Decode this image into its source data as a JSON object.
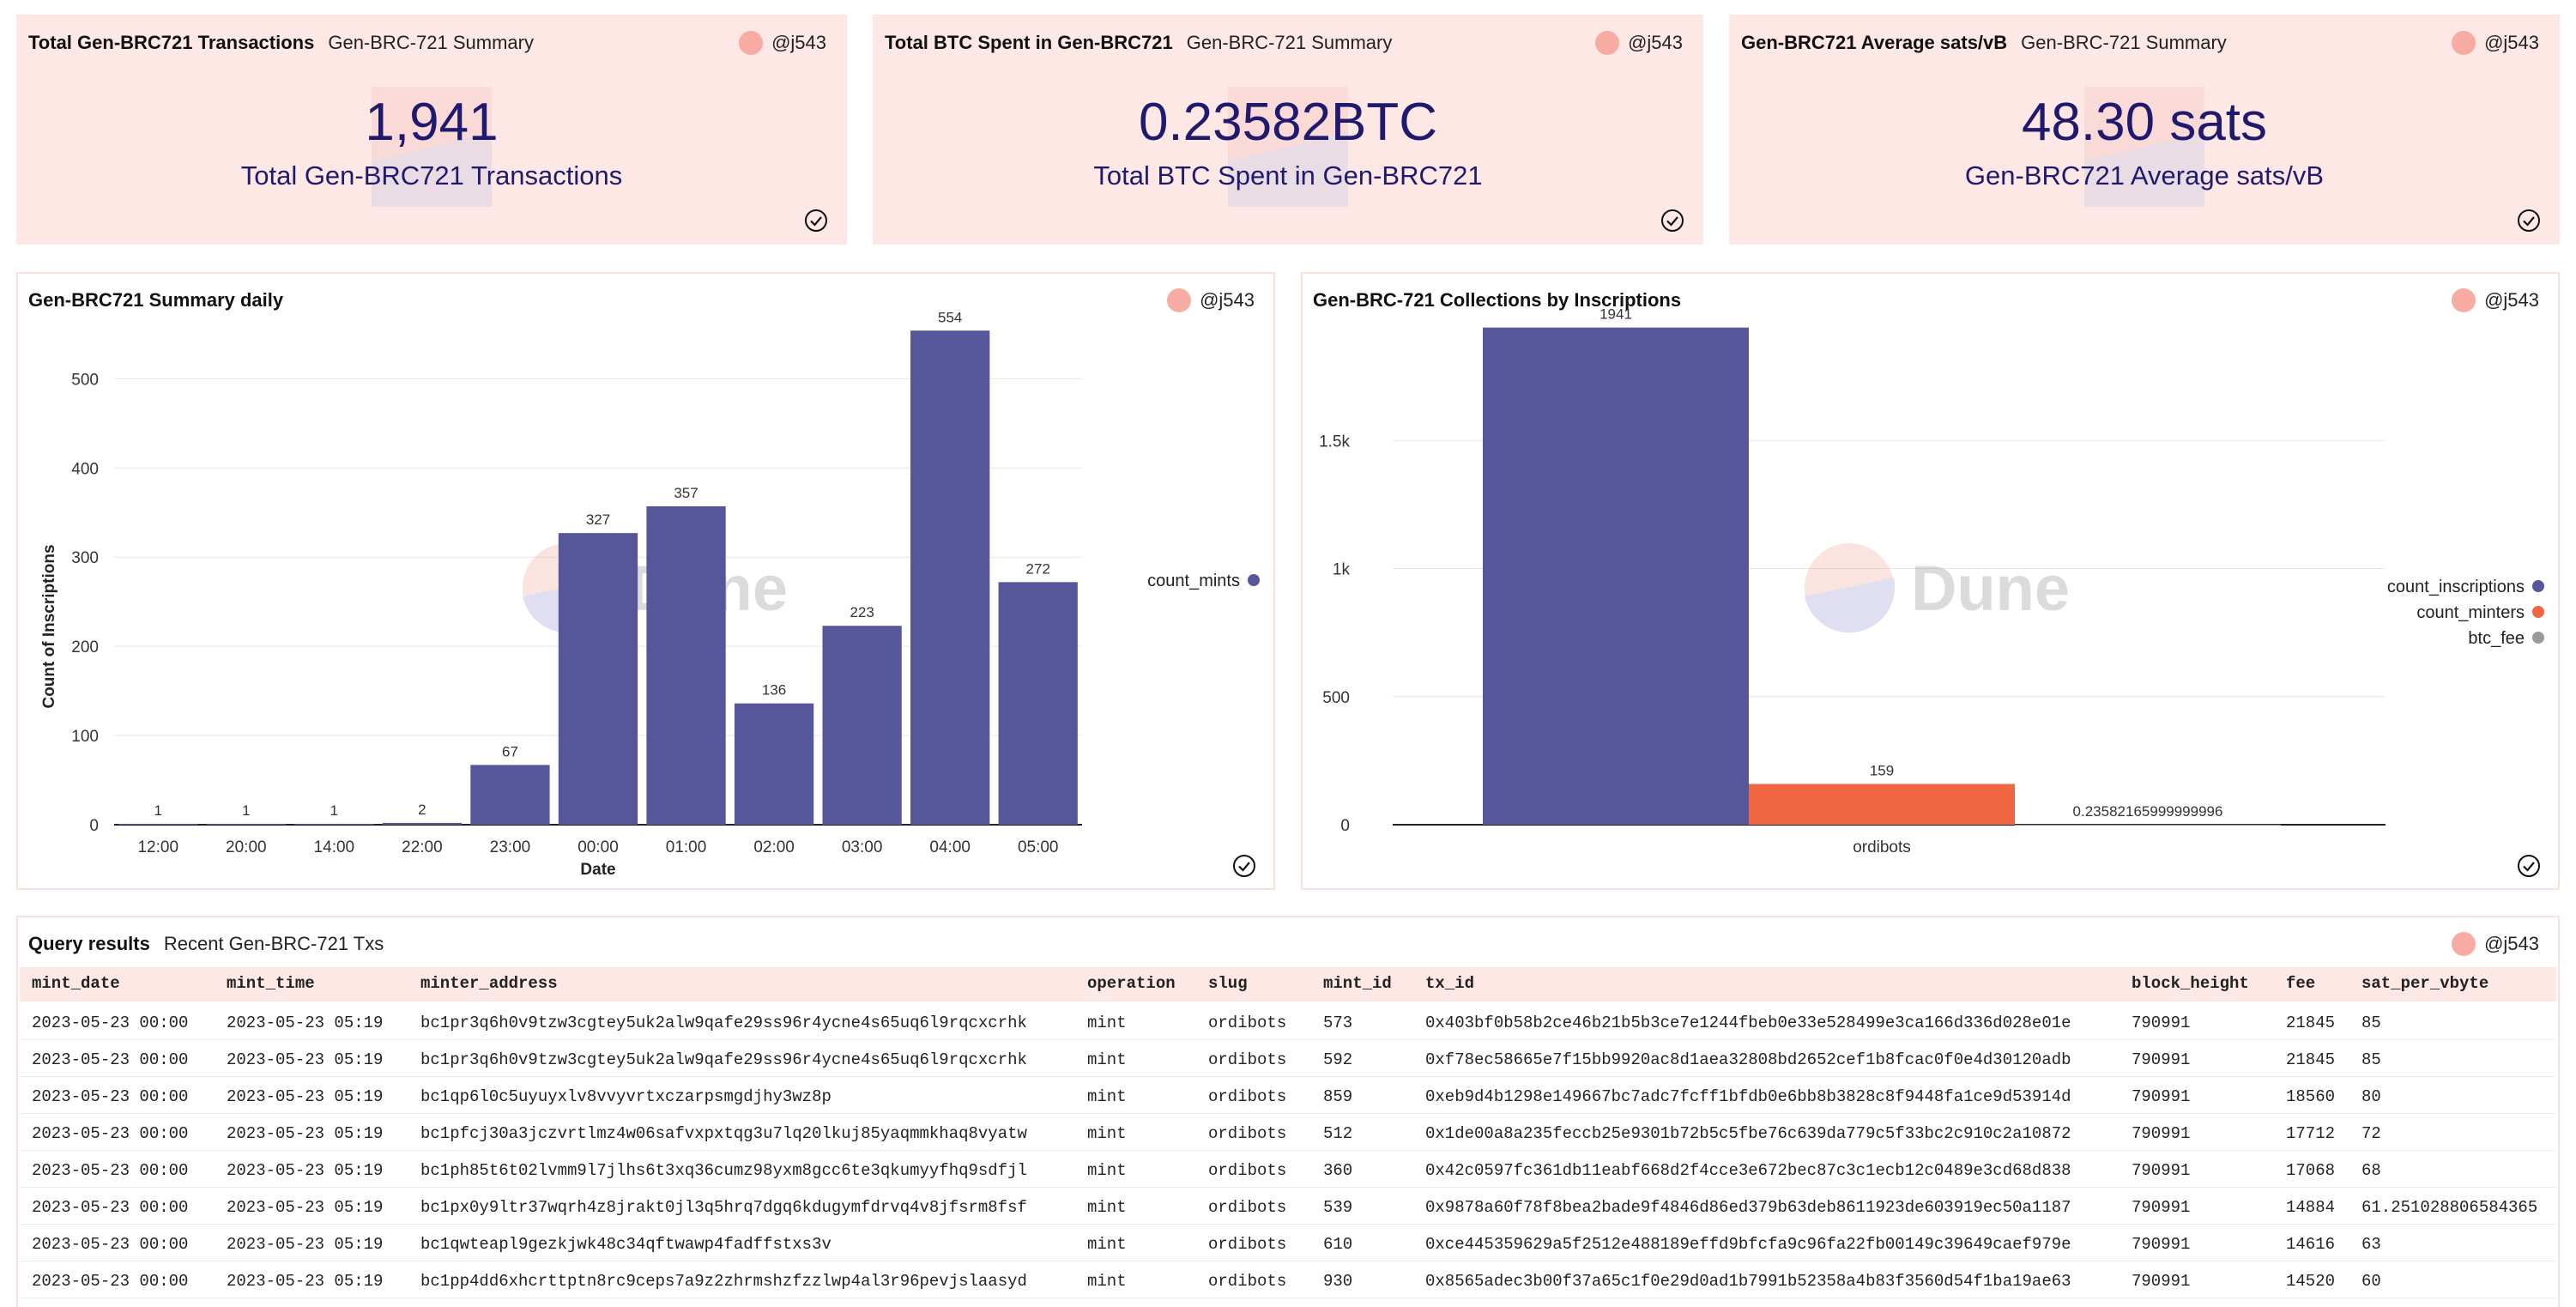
{
  "author": "@j543",
  "counters": [
    {
      "title": "Total Gen-BRC721 Transactions",
      "subtitle": "Gen-BRC-721 Summary",
      "value": "1,941",
      "label": "Total Gen-BRC721 Transactions"
    },
    {
      "title": "Total BTC Spent in Gen-BRC721",
      "subtitle": "Gen-BRC-721 Summary",
      "value": "0.23582BTC",
      "label": "Total BTC Spent in Gen-BRC721"
    },
    {
      "title": "Gen-BRC721 Average sats/vB",
      "subtitle": "Gen-BRC-721 Summary",
      "value": "48.30 sats",
      "label": "Gen-BRC721 Average sats/vB"
    }
  ],
  "watermark": "Dune",
  "chart_data": [
    {
      "type": "bar",
      "title": "Gen-BRC721 Summary daily",
      "xlabel": "Date",
      "ylabel": "Count of Inscriptions",
      "categories": [
        "12:00",
        "20:00",
        "14:00",
        "22:00",
        "23:00",
        "00:00",
        "01:00",
        "02:00",
        "03:00",
        "04:00",
        "05:00"
      ],
      "series": [
        {
          "name": "count_mints",
          "values": [
            1,
            1,
            1,
            2,
            67,
            327,
            357,
            136,
            223,
            554,
            272
          ],
          "color": "#55579a"
        }
      ],
      "ylim": [
        0,
        560
      ],
      "yticks": [
        0,
        100,
        200,
        300,
        400,
        500
      ],
      "grid": true,
      "legend": "right"
    },
    {
      "type": "bar",
      "title": "Gen-BRC-721 Collections by Inscriptions",
      "categories": [
        "ordibots"
      ],
      "series": [
        {
          "name": "count_inscriptions",
          "values": [
            1941
          ],
          "color": "#55579a",
          "label": "1941"
        },
        {
          "name": "count_minters",
          "values": [
            159
          ],
          "color": "#f06542",
          "label": "159"
        },
        {
          "name": "btc_fee",
          "values": [
            0.23582165999999996
          ],
          "color": "#9a9a9a",
          "label": "0.23582165999999996"
        }
      ],
      "ylim": [
        0,
        1950
      ],
      "yticks": [
        0,
        500,
        1000,
        1500
      ],
      "ytick_labels": [
        "0",
        "500",
        "1k",
        "1.5k"
      ],
      "grid": true,
      "legend": "right"
    }
  ],
  "table": {
    "title": "Query results",
    "subtitle": "Recent Gen-BRC-721 Txs",
    "columns": [
      "mint_date",
      "mint_time",
      "minter_address",
      "operation",
      "slug",
      "mint_id",
      "tx_id",
      "block_height",
      "fee",
      "sat_per_vbyte"
    ],
    "rows": [
      [
        "2023-05-23 00:00",
        "2023-05-23 05:19",
        "bc1pr3q6h0v9tzw3cgtey5uk2alw9qafe29ss96r4ycne4s65uq6l9rqcxcrhk",
        "mint",
        "ordibots",
        "573",
        "0x403bf0b58b2ce46b21b5b3ce7e1244fbeb0e33e528499e3ca166d336d028e01e",
        "790991",
        "21845",
        "85"
      ],
      [
        "2023-05-23 00:00",
        "2023-05-23 05:19",
        "bc1pr3q6h0v9tzw3cgtey5uk2alw9qafe29ss96r4ycne4s65uq6l9rqcxcrhk",
        "mint",
        "ordibots",
        "592",
        "0xf78ec58665e7f15bb9920ac8d1aea32808bd2652cef1b8fcac0f0e4d30120adb",
        "790991",
        "21845",
        "85"
      ],
      [
        "2023-05-23 00:00",
        "2023-05-23 05:19",
        "bc1qp6l0c5uyuyxlv8vvyvrtxczarpsmgdjhy3wz8p",
        "mint",
        "ordibots",
        "859",
        "0xeb9d4b1298e149667bc7adc7fcff1bfdb0e6bb8b3828c8f9448fa1ce9d53914d",
        "790991",
        "18560",
        "80"
      ],
      [
        "2023-05-23 00:00",
        "2023-05-23 05:19",
        "bc1pfcj30a3jczvrtlmz4w06safvxpxtqg3u7lq20lkuj85yaqmmkhaq8vyatw",
        "mint",
        "ordibots",
        "512",
        "0x1de00a8a235feccb25e9301b72b5c5fbe76c639da779c5f33bc2c910c2a10872",
        "790991",
        "17712",
        "72"
      ],
      [
        "2023-05-23 00:00",
        "2023-05-23 05:19",
        "bc1ph85t6t02lvmm9l7jlhs6t3xq36cumz98yxm8gcc6te3qkumyyfhq9sdfjl",
        "mint",
        "ordibots",
        "360",
        "0x42c0597fc361db11eabf668d2f4cce3e672bec87c3c1ecb12c0489e3cd68d838",
        "790991",
        "17068",
        "68"
      ],
      [
        "2023-05-23 00:00",
        "2023-05-23 05:19",
        "bc1px0y9ltr37wqrh4z8jrakt0jl3q5hrq7dgq6kdugymfdrvq4v8jfsrm8fsf",
        "mint",
        "ordibots",
        "539",
        "0x9878a60f78f8bea2bade9f4846d86ed379b63deb8611923de603919ec50a1187",
        "790991",
        "14884",
        "61.251028806584365"
      ],
      [
        "2023-05-23 00:00",
        "2023-05-23 05:19",
        "bc1qwteapl9gezkjwk48c34qftwawp4fadffstxs3v",
        "mint",
        "ordibots",
        "610",
        "0xce445359629a5f2512e488189effd9bfcfa9c96fa22fb00149c39649caef979e",
        "790991",
        "14616",
        "63"
      ],
      [
        "2023-05-23 00:00",
        "2023-05-23 05:19",
        "bc1pp4dd6xhcrttptn8rc9ceps7a9z2zhrmshzfzzlwp4al3r96pevjslaasyd",
        "mint",
        "ordibots",
        "930",
        "0x8565adec3b00f37a65c1f0e29d0ad1b7991b52358a4b83f3560d54f1ba19ae63",
        "790991",
        "14520",
        "60"
      ]
    ]
  }
}
